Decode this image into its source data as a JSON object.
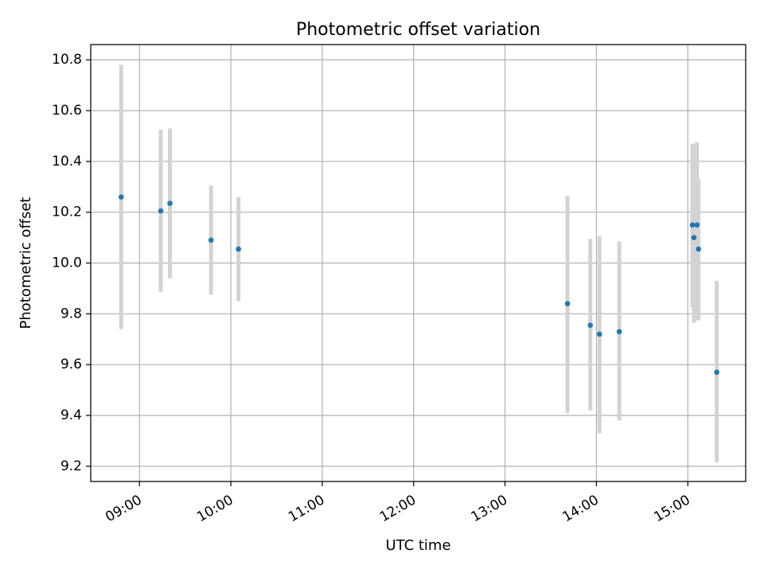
{
  "chart_data": {
    "type": "scatter",
    "title": "Photometric offset variation",
    "xlabel": "UTC time",
    "ylabel": "Photometric offset",
    "xlim": [
      "08:28",
      "15:38"
    ],
    "ylim": [
      9.14,
      10.86
    ],
    "x_ticks": [
      "09:00",
      "10:00",
      "11:00",
      "12:00",
      "13:00",
      "14:00",
      "15:00"
    ],
    "y_ticks": [
      9.2,
      9.4,
      9.6,
      9.8,
      10.0,
      10.2,
      10.4,
      10.6,
      10.8
    ],
    "grid": true,
    "points": [
      {
        "time": "08:48",
        "y": 10.26,
        "err_low": 9.74,
        "err_high": 10.78
      },
      {
        "time": "09:14",
        "y": 10.205,
        "err_low": 9.885,
        "err_high": 10.525
      },
      {
        "time": "09:20",
        "y": 10.235,
        "err_low": 9.94,
        "err_high": 10.53
      },
      {
        "time": "09:47",
        "y": 10.09,
        "err_low": 9.875,
        "err_high": 10.305
      },
      {
        "time": "10:05",
        "y": 10.055,
        "err_low": 9.85,
        "err_high": 10.26
      },
      {
        "time": "13:41",
        "y": 9.84,
        "err_low": 9.41,
        "err_high": 10.265
      },
      {
        "time": "13:56",
        "y": 9.755,
        "err_low": 9.42,
        "err_high": 10.095
      },
      {
        "time": "14:02",
        "y": 9.72,
        "err_low": 9.33,
        "err_high": 10.105
      },
      {
        "time": "14:15",
        "y": 9.73,
        "err_low": 9.38,
        "err_high": 10.085
      },
      {
        "time": "15:03",
        "y": 10.15,
        "err_low": 9.825,
        "err_high": 10.47
      },
      {
        "time": "15:04",
        "y": 10.1,
        "err_low": 9.765,
        "err_high": 10.47
      },
      {
        "time": "15:06",
        "y": 10.15,
        "err_low": 9.775,
        "err_high": 10.475
      },
      {
        "time": "15:07",
        "y": 10.055,
        "err_low": 9.775,
        "err_high": 10.33
      },
      {
        "time": "15:19",
        "y": 9.57,
        "err_low": 9.215,
        "err_high": 9.93
      }
    ],
    "colors": {
      "point": "#1f77b4",
      "errorbar": "#d3d3d3",
      "grid": "#b0b0b0",
      "axes": "#000000"
    }
  }
}
